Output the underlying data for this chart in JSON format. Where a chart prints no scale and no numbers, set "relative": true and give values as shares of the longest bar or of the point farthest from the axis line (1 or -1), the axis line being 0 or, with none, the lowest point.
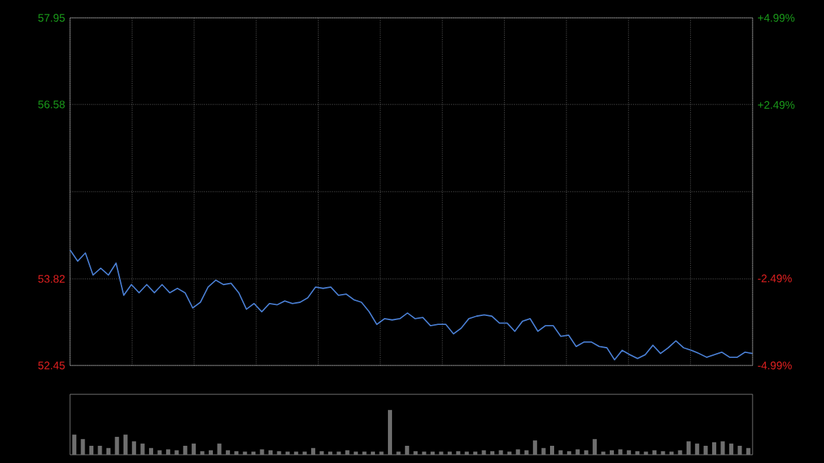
{
  "chart_data": [
    {
      "type": "line",
      "tick_labels": "y",
      "grid": true,
      "marker": "none",
      "line_style": "solid",
      "categories": [
        null,
        null,
        null,
        null,
        null,
        null,
        null,
        null,
        null,
        null,
        null,
        null,
        null,
        null,
        null,
        null,
        null,
        null,
        null,
        null,
        null,
        null,
        null,
        null,
        null,
        null,
        null,
        null,
        null,
        null,
        null,
        null,
        null,
        null,
        null,
        null,
        null,
        null,
        null,
        null,
        null,
        null,
        null,
        null,
        null,
        null,
        null,
        null,
        null,
        null,
        null,
        null,
        null,
        null,
        null,
        null,
        null,
        null,
        null,
        null,
        null,
        null,
        null,
        null,
        null,
        null,
        null,
        null,
        null,
        null,
        null,
        null,
        null,
        null,
        null,
        null,
        null,
        null,
        null,
        null,
        null,
        null,
        null,
        null,
        null,
        null,
        null,
        null,
        null,
        null
      ],
      "series": [
        {
          "color": "#4a7fd4",
          "values": [
            54.28,
            54.1,
            54.23,
            53.88,
            53.99,
            53.88,
            54.07,
            53.56,
            53.73,
            53.6,
            53.73,
            53.6,
            53.73,
            53.6,
            53.67,
            53.6,
            53.36,
            53.45,
            53.69,
            53.8,
            53.73,
            53.75,
            53.6,
            53.34,
            53.43,
            53.3,
            53.43,
            53.41,
            53.47,
            53.43,
            53.45,
            53.52,
            53.69,
            53.67,
            53.69,
            53.56,
            53.58,
            53.49,
            53.45,
            53.3,
            53.1,
            53.19,
            53.17,
            53.19,
            53.28,
            53.19,
            53.21,
            53.08,
            53.1,
            53.1,
            52.95,
            53.04,
            53.19,
            53.23,
            53.25,
            53.23,
            53.12,
            53.12,
            52.99,
            53.15,
            53.19,
            52.99,
            53.08,
            53.08,
            52.91,
            52.93,
            52.75,
            52.82,
            52.82,
            52.75,
            52.73,
            52.54,
            52.69,
            52.62,
            52.56,
            52.62,
            52.77,
            52.64,
            52.73,
            52.84,
            52.73,
            52.69,
            52.64,
            52.58,
            52.62,
            52.66,
            52.58,
            52.58,
            52.66,
            52.64
          ]
        }
      ],
      "ylim": [
        52.45,
        57.95
      ],
      "yticks": [
        52.45,
        53.82,
        {
          "value": 55.2,
          "label": null
        },
        56.58,
        57.95
      ],
      "y2lim": [
        -4.99,
        4.99
      ],
      "y2ticks": [
        {
          "value": -4.99,
          "label": "-4.99%"
        },
        {
          "value": -2.49,
          "label": "-2.49%"
        },
        {
          "value": 2.49,
          "label": "+2.49%"
        },
        {
          "value": 4.99,
          "label": "+4.99%"
        }
      ]
    },
    {
      "type": "bar",
      "relative": true,
      "tick_labels": false,
      "color": "#6e6e6e",
      "categories": [
        null,
        null,
        null,
        null,
        null,
        null,
        null,
        null,
        null,
        null,
        null,
        null,
        null,
        null,
        null,
        null,
        null,
        null,
        null,
        null,
        null,
        null,
        null,
        null,
        null,
        null,
        null,
        null,
        null,
        null,
        null,
        null,
        null,
        null,
        null,
        null,
        null,
        null,
        null,
        null,
        null,
        null,
        null,
        null,
        null,
        null,
        null,
        null,
        null,
        null,
        null,
        null,
        null,
        null,
        null,
        null,
        null,
        null,
        null,
        null,
        null,
        null,
        null,
        null,
        null,
        null,
        null,
        null,
        null,
        null,
        null,
        null,
        null,
        null,
        null,
        null,
        null,
        null,
        null,
        null
      ],
      "values": [
        0.45,
        0.35,
        0.2,
        0.2,
        0.15,
        0.4,
        0.45,
        0.3,
        0.25,
        0.15,
        0.1,
        0.12,
        0.1,
        0.2,
        0.25,
        0.08,
        0.1,
        0.25,
        0.1,
        0.08,
        0.07,
        0.07,
        0.12,
        0.1,
        0.08,
        0.07,
        0.07,
        0.07,
        0.15,
        0.08,
        0.07,
        0.07,
        0.1,
        0.07,
        0.07,
        0.07,
        0.07,
        1.0,
        0.07,
        0.2,
        0.08,
        0.07,
        0.07,
        0.07,
        0.07,
        0.08,
        0.07,
        0.07,
        0.1,
        0.08,
        0.1,
        0.07,
        0.12,
        0.1,
        0.32,
        0.15,
        0.2,
        0.1,
        0.08,
        0.12,
        0.1,
        0.35,
        0.07,
        0.1,
        0.12,
        0.1,
        0.08,
        0.07,
        0.1,
        0.08,
        0.07,
        0.1,
        0.3,
        0.25,
        0.2,
        0.28,
        0.3,
        0.25,
        0.2,
        0.15
      ]
    }
  ]
}
